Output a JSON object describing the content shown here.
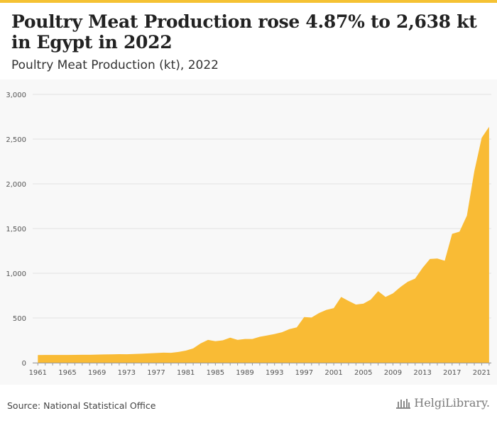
{
  "header": {
    "title": "Poultry Meat Production rose 4.87% to 2,638 kt in Egypt in 2022",
    "subtitle": "Poultry Meat Production (kt), 2022"
  },
  "footer": {
    "source": "Source: National Statistical Office",
    "brand": "HelgiLibrary."
  },
  "colors": {
    "accent": "#f5c233",
    "area": "#f9bb35",
    "grid": "#e2e2e2",
    "axis_text": "#555555"
  },
  "chart_data": {
    "type": "area",
    "title": "Poultry Meat Production rose 4.87% to 2,638 kt in Egypt in 2022",
    "subtitle": "Poultry Meat Production (kt), 2022",
    "xlabel": "",
    "ylabel": "",
    "ylim": [
      0,
      3000
    ],
    "yticks": [
      0,
      500,
      1000,
      1500,
      2000,
      2500,
      3000
    ],
    "ytick_labels": [
      "0",
      "500",
      "1,000",
      "1,500",
      "2,000",
      "2,500",
      "3,000"
    ],
    "xticks": [
      1961,
      1965,
      1969,
      1973,
      1977,
      1981,
      1985,
      1989,
      1993,
      1997,
      2001,
      2005,
      2009,
      2013,
      2017,
      2021
    ],
    "grid": true,
    "legend": "none",
    "series": [
      {
        "x": [
          1961,
          1962,
          1963,
          1964,
          1965,
          1966,
          1967,
          1968,
          1969,
          1970,
          1971,
          1972,
          1973,
          1974,
          1975,
          1976,
          1977,
          1978,
          1979,
          1980,
          1981,
          1982,
          1983,
          1984,
          1985,
          1986,
          1987,
          1988,
          1989,
          1990,
          1991,
          1992,
          1993,
          1994,
          1995,
          1996,
          1997,
          1998,
          1999,
          2000,
          2001,
          2002,
          2003,
          2004,
          2005,
          2006,
          2007,
          2008,
          2009,
          2010,
          2011,
          2012,
          2013,
          2014,
          2015,
          2016,
          2017,
          2018,
          2019,
          2020,
          2021,
          2022
        ],
        "values": [
          85,
          86,
          86,
          86,
          86,
          87,
          88,
          88,
          90,
          92,
          93,
          95,
          94,
          97,
          100,
          104,
          108,
          112,
          110,
          120,
          135,
          160,
          215,
          255,
          240,
          250,
          280,
          255,
          265,
          265,
          290,
          305,
          320,
          340,
          375,
          395,
          510,
          505,
          555,
          590,
          610,
          735,
          690,
          650,
          660,
          705,
          800,
          735,
          775,
          845,
          905,
          940,
          1060,
          1160,
          1165,
          1140,
          1440,
          1465,
          1645,
          2140,
          2515,
          2638
        ]
      }
    ]
  }
}
